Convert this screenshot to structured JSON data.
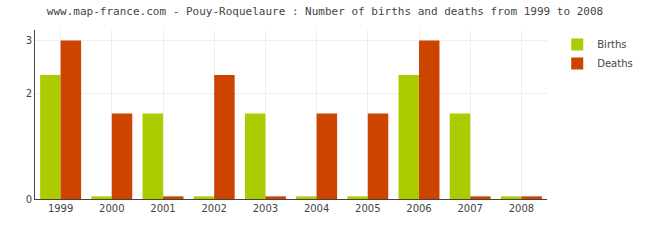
{
  "chart_data": {
    "type": "bar",
    "title": "www.map-france.com - Pouy-Roquelaure : Number of births and deaths from 1999 to 2008",
    "categories": [
      "1999",
      "2000",
      "2001",
      "2002",
      "2003",
      "2004",
      "2005",
      "2006",
      "2007",
      "2008"
    ],
    "series": [
      {
        "name": "Births",
        "color": "#aacc00",
        "values": [
          2.35,
          0.05,
          1.62,
          0.05,
          1.62,
          0.05,
          0.05,
          2.35,
          1.62,
          0.05
        ]
      },
      {
        "name": "Deaths",
        "color": "#cc4400",
        "values": [
          3.0,
          1.62,
          0.05,
          2.35,
          0.05,
          1.62,
          1.62,
          3.0,
          0.05,
          0.05
        ]
      }
    ],
    "ylim": [
      0,
      3.2
    ],
    "yticks": [
      0,
      2,
      3
    ],
    "grid": true,
    "legend": "upper right"
  }
}
